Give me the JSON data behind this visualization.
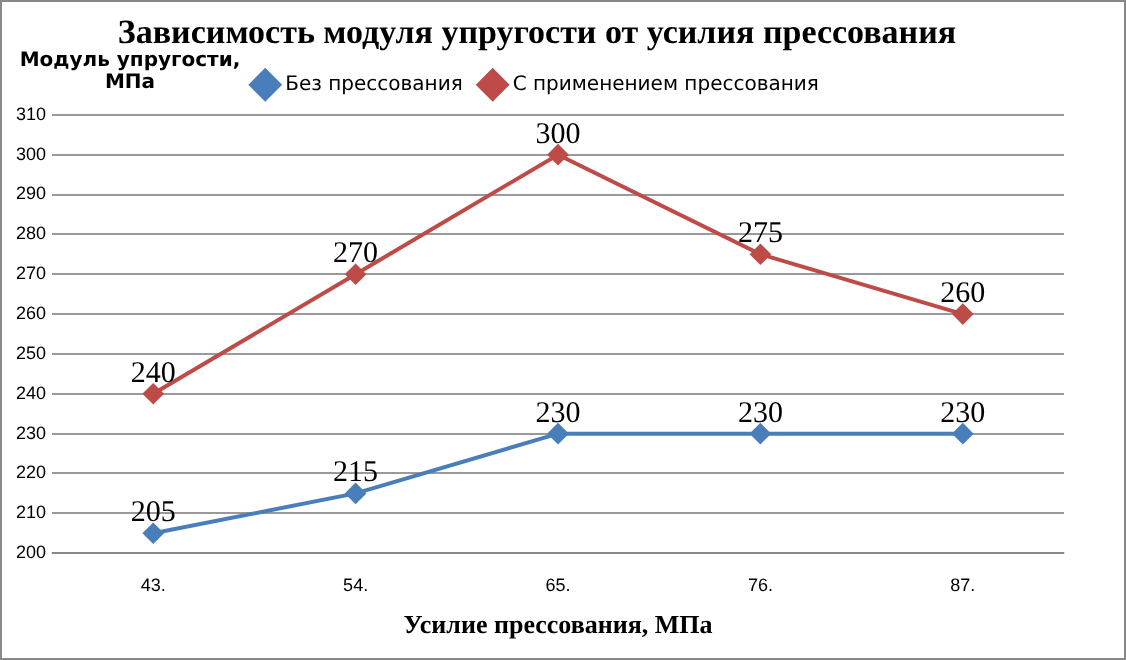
{
  "chart_data": {
    "type": "line",
    "title": "Зависимость модуля упругости от усилия прессования",
    "xlabel": "Усилие прессования, МПа",
    "ylabel": "Модуль упругости, МПа",
    "categories": [
      "43.",
      "54.",
      "65.",
      "76.",
      "87."
    ],
    "series": [
      {
        "name": "Без прессования",
        "color": "#4a7ebb",
        "values": [
          205,
          215,
          230,
          230,
          230
        ]
      },
      {
        "name": "С применением прессования",
        "color": "#be4b48",
        "values": [
          240,
          270,
          300,
          275,
          260
        ]
      }
    ],
    "ylim": [
      200,
      310
    ],
    "yticks": [
      200,
      210,
      220,
      230,
      240,
      250,
      260,
      270,
      280,
      290,
      300,
      310
    ],
    "grid": "y",
    "legend": "top",
    "marker": "diamond",
    "data_labels": true
  }
}
